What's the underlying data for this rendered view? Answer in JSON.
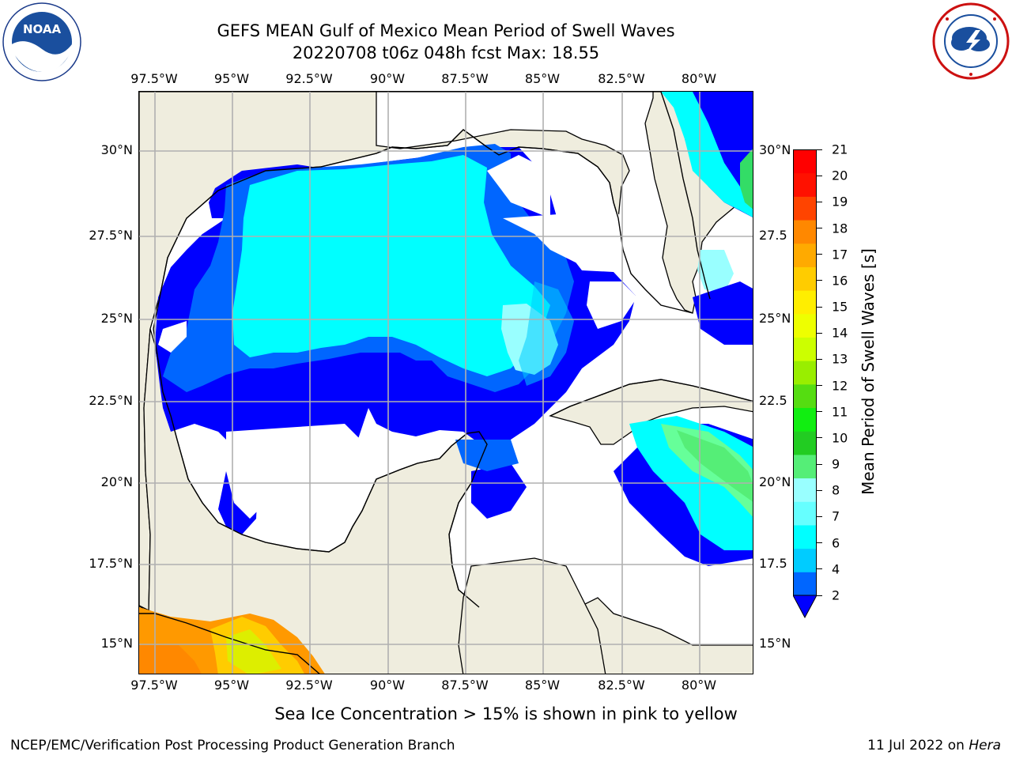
{
  "title": {
    "line1": "GEFS MEAN Gulf of Mexico Mean Period of Swell Waves",
    "line2": "20220708 t06z 048h fcst   Max: 18.55"
  },
  "logos": {
    "noaa_text": "NOAA",
    "noaa_ring": "NATIONAL OCEANIC AND ATMOSPHERIC ADMINISTRATION · U.S. DEPARTMENT OF COMMERCE",
    "nws_ring": "NATIONAL WEATHER SERVICE"
  },
  "map": {
    "lon_ticks": [
      "97.5°W",
      "95°W",
      "92.5°W",
      "90°W",
      "87.5°W",
      "85°W",
      "82.5°W",
      "80°W"
    ],
    "lat_ticks_left": [
      "30°N",
      "27.5°N",
      "25°N",
      "22.5°N",
      "20°N",
      "17.5°N",
      "15°N"
    ],
    "lat_ticks_right": [
      "30°N",
      "27.5",
      "25°N",
      "22.5",
      "20°N",
      "17.5",
      "15°N"
    ],
    "extent": {
      "lon_min": -98.0,
      "lon_max": -78.3,
      "lat_min": 14.0,
      "lat_max": 31.8
    },
    "colors": {
      "land": "#efedde",
      "water": "#ffffff",
      "grid": "#b0b0b0",
      "coast": "#000000"
    }
  },
  "colorbar": {
    "label": "Mean Period of Swell Waves [s]",
    "ticks": [
      "2",
      "4",
      "6",
      "7",
      "8",
      "9",
      "10",
      "11",
      "12",
      "13",
      "14",
      "15",
      "16",
      "17",
      "18",
      "19",
      "20",
      "21"
    ],
    "colors": [
      "#0066ff",
      "#00ccff",
      "#00ffff",
      "#66ffff",
      "#99ffff",
      "#55ee77",
      "#22cc22",
      "#11ee11",
      "#55dd11",
      "#99ee00",
      "#ccff00",
      "#eeff00",
      "#ffee00",
      "#ffcc00",
      "#ffaa00",
      "#ff8800",
      "#ff4400",
      "#ff1100",
      "#ff0000"
    ],
    "extend_color": "#0000ff"
  },
  "bottom_note": "Sea Ice Concentration > 15% is shown in pink to yellow",
  "footer": {
    "left": "NCEP/EMC/Verification Post Processing Product Generation Branch",
    "right_prefix": "11 Jul 2022 on ",
    "right_host": "Hera"
  }
}
